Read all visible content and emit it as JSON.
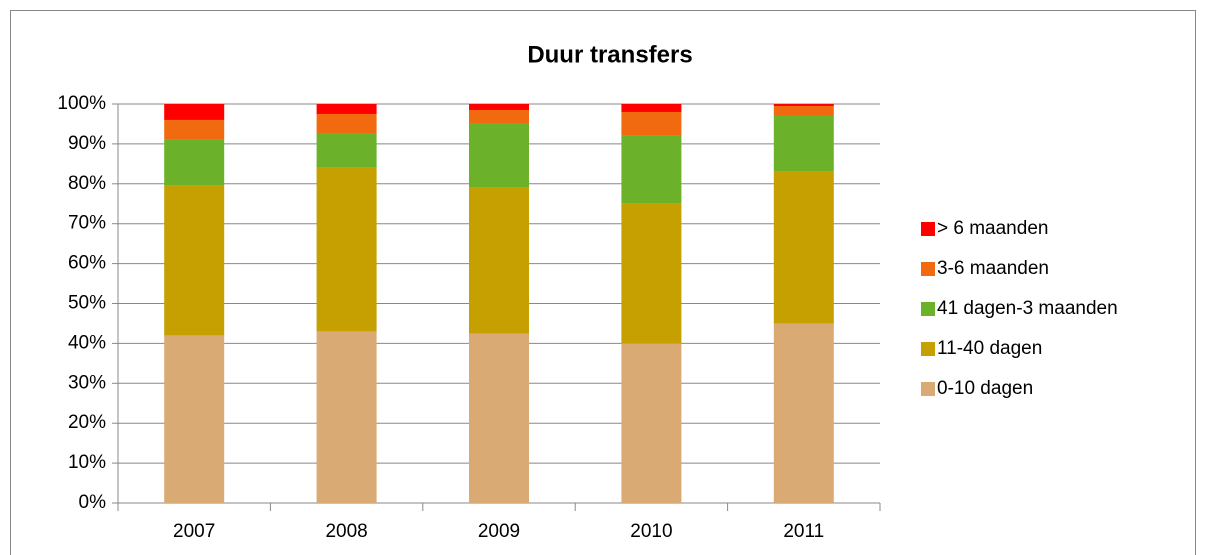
{
  "chart_data": {
    "type": "stacked_bar",
    "title": "Duur transfers",
    "categories": [
      "2007",
      "2008",
      "2009",
      "2010",
      "2011"
    ],
    "series": [
      {
        "name": "0-10 dagen",
        "color": "#d9aa73",
        "values": [
          42,
          43,
          42.5,
          40,
          45
        ]
      },
      {
        "name": "11-40 dagen",
        "color": "#c5a000",
        "values": [
          37.5,
          41,
          36.5,
          35,
          38
        ]
      },
      {
        "name": "41 dagen-3 maanden",
        "color": "#6bb22a",
        "values": [
          11.5,
          8.5,
          16,
          17,
          14
        ]
      },
      {
        "name": "3-6 maanden",
        "color": "#f26a10",
        "values": [
          5,
          5,
          3.5,
          6,
          2.5
        ]
      },
      {
        "name": "> 6 maanden",
        "color": "#ff0000",
        "values": [
          4,
          2.5,
          1.5,
          2,
          0.5
        ]
      }
    ],
    "ylim": [
      0,
      100
    ],
    "yticks": [
      {
        "value": 0,
        "label": "0%"
      },
      {
        "value": 10,
        "label": "10%"
      },
      {
        "value": 20,
        "label": "20%"
      },
      {
        "value": 30,
        "label": "30%"
      },
      {
        "value": 40,
        "label": "40%"
      },
      {
        "value": 50,
        "label": "50%"
      },
      {
        "value": 60,
        "label": "60%"
      },
      {
        "value": 70,
        "label": "70%"
      },
      {
        "value": 80,
        "label": "80%"
      },
      {
        "value": 90,
        "label": "90%"
      },
      {
        "value": 100,
        "label": "100%"
      }
    ],
    "grid": true,
    "legend": "right"
  }
}
